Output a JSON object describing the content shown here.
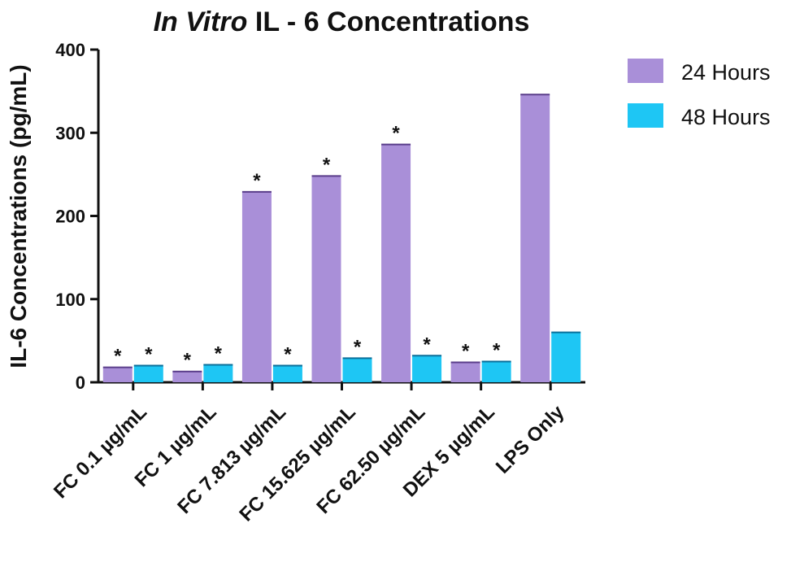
{
  "chart_data": {
    "type": "bar",
    "title_italic": "In Vitro",
    "title_rest": "IL - 6 Concentrations",
    "xlabel": "",
    "ylabel": "IL-6 Concentrations (pg/mL)",
    "ylim": [
      0,
      400
    ],
    "yticks": [
      0,
      100,
      200,
      300,
      400
    ],
    "categories": [
      "FC 0.1 µg/mL",
      "FC 1 µg/mL",
      "FC 7.813 µg/mL",
      "FC 15.625 µg/mL",
      "FC 62.50 µg/mL",
      "DEX 5 µg/mL",
      "LPS Only"
    ],
    "series": [
      {
        "name": "24 Hours",
        "color": "#a98fd8",
        "values": [
          18,
          13,
          229,
          248,
          286,
          24,
          346
        ],
        "significant": [
          true,
          true,
          true,
          true,
          true,
          true,
          false
        ]
      },
      {
        "name": "48 Hours",
        "color": "#1ec6f4",
        "values": [
          20,
          21,
          20,
          29,
          32,
          25,
          60
        ],
        "significant": [
          true,
          true,
          true,
          true,
          true,
          true,
          false
        ]
      }
    ],
    "significance_marker": "*",
    "legend_position": "top-right",
    "grid": false
  }
}
